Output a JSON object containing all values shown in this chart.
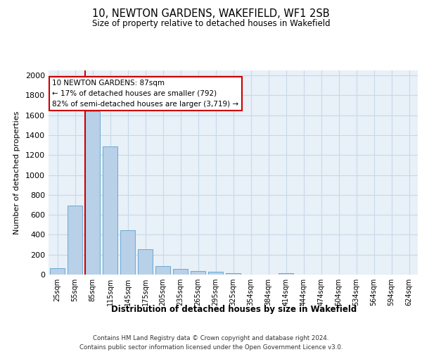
{
  "title": "10, NEWTON GARDENS, WAKEFIELD, WF1 2SB",
  "subtitle": "Size of property relative to detached houses in Wakefield",
  "xlabel": "Distribution of detached houses by size in Wakefield",
  "ylabel": "Number of detached properties",
  "bar_color": "#b8d0e8",
  "bar_edge_color": "#6aaad4",
  "vline_color": "#cc0000",
  "vline_x_index": 2,
  "categories": [
    "25sqm",
    "55sqm",
    "85sqm",
    "115sqm",
    "145sqm",
    "175sqm",
    "205sqm",
    "235sqm",
    "265sqm",
    "295sqm",
    "325sqm",
    "354sqm",
    "384sqm",
    "414sqm",
    "444sqm",
    "474sqm",
    "504sqm",
    "534sqm",
    "564sqm",
    "594sqm",
    "624sqm"
  ],
  "values": [
    65,
    695,
    1640,
    1290,
    445,
    255,
    87,
    55,
    38,
    27,
    16,
    0,
    0,
    17,
    0,
    0,
    0,
    0,
    0,
    0,
    0
  ],
  "ylim": [
    0,
    2050
  ],
  "yticks": [
    0,
    200,
    400,
    600,
    800,
    1000,
    1200,
    1400,
    1600,
    1800,
    2000
  ],
  "annotation_text": "10 NEWTON GARDENS: 87sqm\n← 17% of detached houses are smaller (792)\n82% of semi-detached houses are larger (3,719) →",
  "annotation_box_color": "#ffffff",
  "annotation_box_edge": "#cc0000",
  "footer_line1": "Contains HM Land Registry data © Crown copyright and database right 2024.",
  "footer_line2": "Contains public sector information licensed under the Open Government Licence v3.0.",
  "grid_color": "#c8d8ea",
  "plot_bg_color": "#e8f0f8"
}
